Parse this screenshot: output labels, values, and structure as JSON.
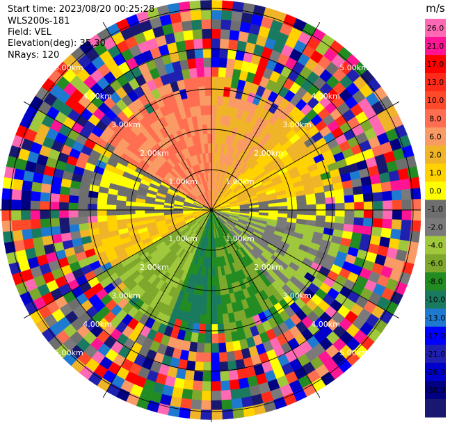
{
  "info": {
    "start_time": "Start time: 2023/08/20 00:25:28",
    "station": "WLS200s-181",
    "field": "Field: VEL",
    "elevation": "Elevation(deg): 35.30",
    "nrays": "NRays: 120"
  },
  "chart_data": {
    "type": "heatmap",
    "projection": "polar-ppi",
    "field": "VEL",
    "elevation_deg": 35.3,
    "nrays": 120,
    "range_rings_km": [
      1.0,
      2.0,
      3.0,
      4.0,
      5.0
    ],
    "range_labels": [
      "1.00km",
      "2.00km",
      "3.00km",
      "4.00km",
      "5.00km"
    ],
    "max_range_km": 5.2,
    "gates": 22,
    "azimuth_spokes_deg": [
      0,
      30,
      60,
      90,
      120,
      150,
      180,
      210,
      240,
      270,
      300,
      330
    ],
    "colorbar": {
      "unit": "m/s",
      "ticks": [
        "26.0",
        "21.0",
        "17.0",
        "13.0",
        "10.0",
        "8.0",
        "6.0",
        "2.0",
        "1.0",
        "0.0",
        "-1.0",
        "-2.0",
        "-4.0",
        "-6.0",
        "-8.0",
        "-10.0",
        "-13.0",
        "-17.0",
        "-21.0",
        "-26.0",
        "-30.0"
      ],
      "colors": [
        "#ff69b4",
        "#ff1493",
        "#ff0000",
        "#ff2a1a",
        "#ff4a2a",
        "#ff6e50",
        "#fa9a64",
        "#f0b428",
        "#ffd200",
        "#ffff00",
        "#6e6e6e",
        "#7a7a7a",
        "#a0c83c",
        "#7ea82c",
        "#228b22",
        "#1a7a60",
        "#1e7ad0",
        "#0000ff",
        "#2020b0",
        "#0000cd",
        "#000080",
        "#181870"
      ]
    },
    "pattern": {
      "noise_beyond_km": 3.3,
      "sectors": [
        {
          "from_deg": 300,
          "to_deg": 360,
          "velocity": 8.0
        },
        {
          "from_deg": 0,
          "to_deg": 40,
          "velocity": 6.0
        },
        {
          "from_deg": 40,
          "to_deg": 80,
          "velocity": 2.0
        },
        {
          "from_deg": 80,
          "to_deg": 100,
          "velocity": 0.0
        },
        {
          "from_deg": 100,
          "to_deg": 140,
          "velocity": -2.0
        },
        {
          "from_deg": 140,
          "to_deg": 175,
          "velocity": -6.0
        },
        {
          "from_deg": 175,
          "to_deg": 200,
          "velocity": -8.0
        },
        {
          "from_deg": 200,
          "to_deg": 240,
          "velocity": -4.0
        },
        {
          "from_deg": 240,
          "to_deg": 265,
          "velocity": 2.0
        },
        {
          "from_deg": 265,
          "to_deg": 300,
          "velocity": 0.0
        }
      ]
    }
  }
}
